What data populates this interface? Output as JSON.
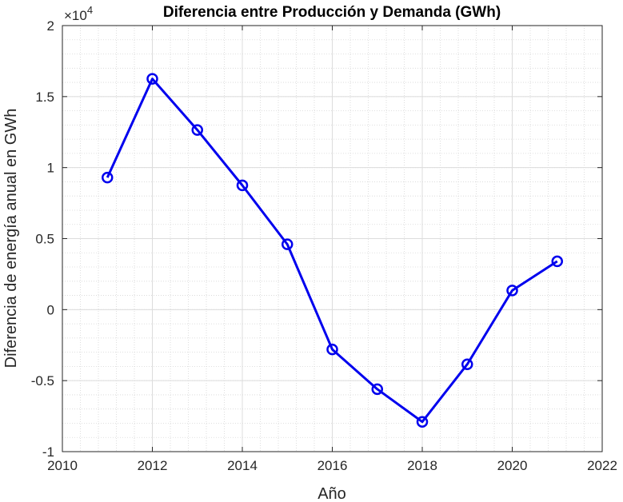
{
  "chart_data": {
    "type": "line",
    "title": "Diferencia entre Producción y Demanda (GWh)",
    "xlabel": "Año",
    "ylabel": "Diferencia de energía anual en GWh",
    "y_exponent_base": "×10",
    "y_exponent_power": "4",
    "xlim": [
      2010,
      2022
    ],
    "ylim": [
      -10000,
      20000
    ],
    "x_ticks": [
      2010,
      2012,
      2014,
      2016,
      2018,
      2020,
      2022
    ],
    "y_ticks": [
      -1,
      -0.5,
      0,
      0.5,
      1,
      1.5,
      2
    ],
    "y_tick_labels": [
      "-1",
      "-0.5",
      "0",
      "0.5",
      "1",
      "1.5",
      "2"
    ],
    "grid": true,
    "minor_grid": true,
    "series": [
      {
        "color": "#0000ee",
        "marker": "circle",
        "x": [
          2011,
          2012,
          2013,
          2014,
          2015,
          2016,
          2017,
          2018,
          2019,
          2020,
          2021
        ],
        "y": [
          9300,
          16250,
          12650,
          8750,
          4600,
          -2800,
          -5600,
          -7900,
          -3850,
          1350,
          3400
        ]
      }
    ]
  }
}
